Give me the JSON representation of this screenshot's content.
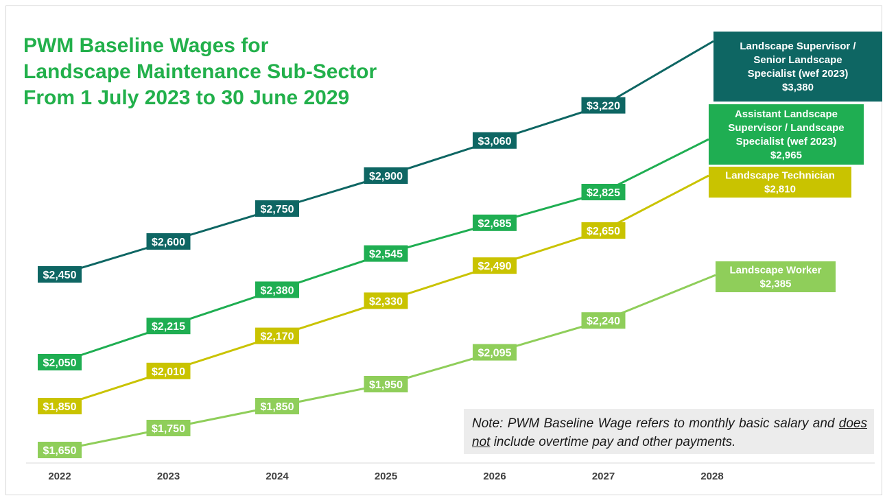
{
  "chart_data": {
    "type": "line",
    "title_lines": [
      "PWM Baseline Wages for",
      "Landscape Maintenance Sub-Sector",
      "From 1 July 2023 to 30 June 2029"
    ],
    "x": [
      "2022",
      "2023",
      "2024",
      "2025",
      "2026",
      "2027",
      "2028"
    ],
    "series": [
      {
        "name": "Landscape Supervisor / Senior Landscape Specialist (wef 2023)",
        "label_lines": [
          "Landscape Supervisor /",
          "Senior Landscape",
          "Specialist (wef 2023)"
        ],
        "values": [
          2450,
          2600,
          2750,
          2900,
          3060,
          3220,
          3380
        ],
        "value_labels": [
          "$2,450",
          "$2,600",
          "$2,750",
          "$2,900",
          "$3,060",
          "$3,220",
          "$3,380"
        ],
        "color": "#0e6663"
      },
      {
        "name": "Assistant Landscape Supervisor / Landscape Specialist (wef 2023)",
        "label_lines": [
          "Assistant Landscape",
          "Supervisor /  Landscape",
          "Specialist (wef 2023)"
        ],
        "values": [
          2050,
          2215,
          2380,
          2545,
          2685,
          2825,
          2965
        ],
        "value_labels": [
          "$2,050",
          "$2,215",
          "$2,380",
          "$2,545",
          "$2,685",
          "$2,825",
          "$2,965"
        ],
        "color": "#1fae52"
      },
      {
        "name": "Landscape Technician",
        "label_lines": [
          "Landscape Technician"
        ],
        "values": [
          1850,
          2010,
          2170,
          2330,
          2490,
          2650,
          2810
        ],
        "value_labels": [
          "$1,850",
          "$2,010",
          "$2,170",
          "$2,330",
          "$2,490",
          "$2,650",
          "$2,810"
        ],
        "color": "#c9c300"
      },
      {
        "name": "Landscape Worker",
        "label_lines": [
          "Landscape Worker"
        ],
        "values": [
          1650,
          1750,
          1850,
          1950,
          2095,
          2240,
          2385
        ],
        "value_labels": [
          "$1,650",
          "$1,750",
          "$1,850",
          "$1,950",
          "$2,095",
          "$2,240",
          "$2,385"
        ],
        "color": "#8fce5a"
      }
    ],
    "grid": false,
    "legend": "end-of-line labels"
  },
  "note": {
    "prefix": "Note: PWM Baseline Wage refers to monthly basic salary and ",
    "underlined": "does not",
    "suffix": " include overtime pay and other payments."
  }
}
